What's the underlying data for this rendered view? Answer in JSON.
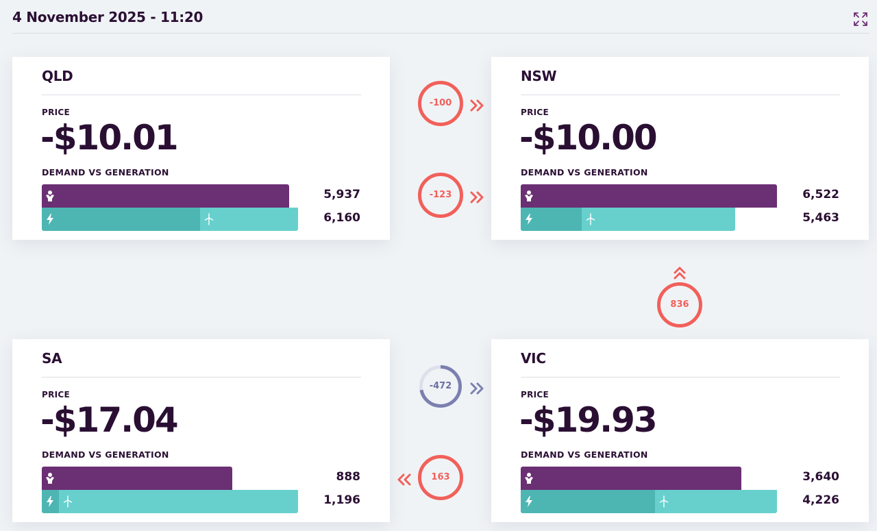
{
  "header": {
    "datetime": "4 November 2025 - 11:20",
    "expand_icon": "expand-icon"
  },
  "labels": {
    "price": "PRICE",
    "demand_vs_generation": "DEMAND VS GENERATION"
  },
  "colors": {
    "demand": "#6b2f73",
    "generation": "#67d0cc",
    "solar_generation": "#4db6b3",
    "flow_active": "#f1605a",
    "flow_inactive": "#7b80b0",
    "text": "#2a0f33"
  },
  "icons": {
    "demand": "demand-person-icon",
    "solar": "lightning-icon",
    "wind": "wind-turbine-icon",
    "flow_arrow": "double-chevron-icon"
  },
  "regions": {
    "qld": {
      "name": "QLD",
      "price": "-$10.01",
      "demand": "5,937",
      "generation": "6,160",
      "demand_fraction": 0.964,
      "generation_fraction": 1.0,
      "solar_fraction": 0.617
    },
    "nsw": {
      "name": "NSW",
      "price": "-$10.00",
      "demand": "6,522",
      "generation": "5,463",
      "demand_fraction": 1.0,
      "generation_fraction": 0.838,
      "solar_fraction": 0.238
    },
    "sa": {
      "name": "SA",
      "price": "-$17.04",
      "demand": "888",
      "generation": "1,196",
      "demand_fraction": 0.743,
      "generation_fraction": 1.0,
      "solar_fraction": 0.067
    },
    "vic": {
      "name": "VIC",
      "price": "-$19.93",
      "demand": "3,640",
      "generation": "4,226",
      "demand_fraction": 0.861,
      "generation_fraction": 1.0,
      "solar_fraction": 0.524
    }
  },
  "flows": {
    "qld_nsw_1": {
      "value": "-100",
      "direction": "right"
    },
    "qld_nsw_2": {
      "value": "-123",
      "direction": "right"
    },
    "vic_nsw": {
      "value": "836",
      "direction": "up"
    },
    "sa_vic_1": {
      "value": "-472",
      "direction": "right",
      "progress": 0.72
    },
    "sa_vic_2": {
      "value": "163",
      "direction": "left"
    }
  }
}
